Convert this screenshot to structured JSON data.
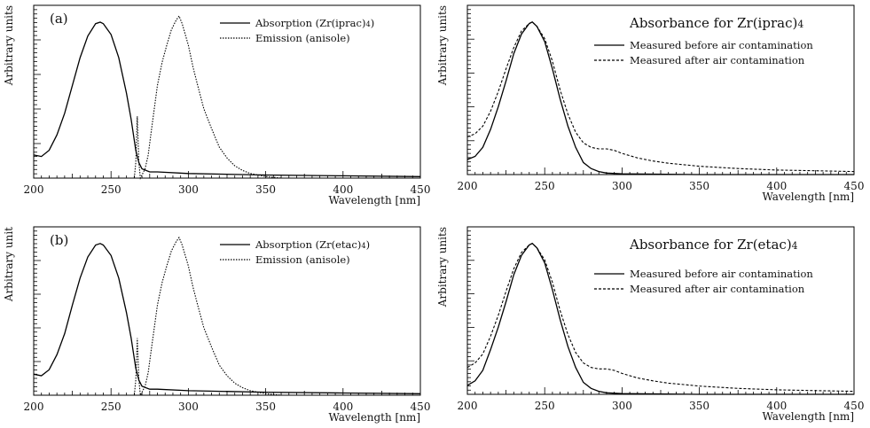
{
  "chart_data": [
    {
      "type": "line",
      "panel_label": "(a)",
      "title": "",
      "xlabel": "Wavelength [nm]",
      "ylabel": "Arbitrary units",
      "xlim": [
        200,
        450
      ],
      "ylim": [
        0,
        1.05
      ],
      "xticks": [
        "200",
        "250",
        "300",
        "350",
        "400",
        "450"
      ],
      "legend_position": "top-right",
      "series": [
        {
          "name": "Absorption  (Zr(iprac)4)",
          "style": "solid",
          "x": [
            200,
            205,
            210,
            215,
            220,
            225,
            230,
            235,
            240,
            243,
            245,
            250,
            255,
            260,
            263,
            266,
            268,
            270,
            275,
            280,
            300,
            350,
            400,
            450
          ],
          "y": [
            0.15,
            0.14,
            0.18,
            0.28,
            0.42,
            0.6,
            0.78,
            0.92,
            1.0,
            1.01,
            1.0,
            0.93,
            0.78,
            0.55,
            0.38,
            0.18,
            0.1,
            0.06,
            0.04,
            0.04,
            0.03,
            0.02,
            0.015,
            0.01
          ]
        },
        {
          "name": "Emission (anisole)",
          "style": "dotted",
          "x": [
            262,
            265,
            266,
            267,
            268,
            269,
            270,
            272,
            274,
            276,
            278,
            280,
            283,
            286,
            289,
            292,
            294,
            296,
            298,
            300,
            303,
            306,
            310,
            315,
            320,
            325,
            330,
            335,
            340,
            345,
            350,
            355,
            360
          ],
          "y": [
            0,
            0,
            0.1,
            0.4,
            0.1,
            0,
            0.02,
            0.06,
            0.15,
            0.3,
            0.45,
            0.6,
            0.75,
            0.86,
            0.96,
            1.02,
            1.05,
            1.0,
            0.93,
            0.86,
            0.72,
            0.6,
            0.45,
            0.32,
            0.2,
            0.13,
            0.08,
            0.05,
            0.03,
            0.02,
            0.01,
            0.005,
            0
          ]
        }
      ]
    },
    {
      "type": "line",
      "title": "Absorbance for Zr(iprac)4",
      "xlabel": "Wavelength [nm]",
      "ylabel": "Arbitrary units",
      "xlim": [
        200,
        450
      ],
      "ylim": [
        0,
        1.05
      ],
      "xticks": [
        "200",
        "250",
        "300",
        "350",
        "400",
        "450"
      ],
      "legend_position": "top-right",
      "series": [
        {
          "name": "Measured before air contamination",
          "style": "solid",
          "x": [
            200,
            205,
            210,
            215,
            220,
            225,
            230,
            235,
            240,
            242,
            245,
            250,
            255,
            260,
            265,
            270,
            275,
            280,
            285,
            290,
            300,
            350,
            400,
            450
          ],
          "y": [
            0.1,
            0.12,
            0.18,
            0.3,
            0.45,
            0.62,
            0.8,
            0.93,
            1.0,
            1.01,
            0.98,
            0.88,
            0.7,
            0.5,
            0.32,
            0.18,
            0.08,
            0.04,
            0.02,
            0.01,
            0.005,
            0.0,
            0.0,
            0.0
          ]
        },
        {
          "name": "Measured after air contamination",
          "style": "dashed",
          "x": [
            200,
            205,
            210,
            215,
            220,
            225,
            230,
            235,
            240,
            242,
            245,
            250,
            255,
            260,
            265,
            270,
            275,
            280,
            285,
            290,
            295,
            300,
            310,
            320,
            330,
            340,
            350,
            375,
            400,
            425,
            450
          ],
          "y": [
            0.25,
            0.27,
            0.32,
            0.42,
            0.55,
            0.7,
            0.84,
            0.95,
            1.0,
            1.01,
            0.98,
            0.9,
            0.75,
            0.56,
            0.4,
            0.28,
            0.21,
            0.18,
            0.17,
            0.17,
            0.16,
            0.14,
            0.11,
            0.09,
            0.075,
            0.065,
            0.055,
            0.04,
            0.03,
            0.025,
            0.02
          ]
        }
      ]
    },
    {
      "type": "line",
      "panel_label": "(b)",
      "title": "",
      "xlabel": "Wavelength [nm]",
      "ylabel": "Arbitrary unit",
      "xlim": [
        200,
        450
      ],
      "ylim": [
        0,
        1.05
      ],
      "xticks": [
        "200",
        "250",
        "300",
        "350",
        "400",
        "450"
      ],
      "legend_position": "top-right",
      "series": [
        {
          "name": "Absorption (Zr(etac)4)",
          "style": "solid",
          "x": [
            200,
            205,
            210,
            215,
            220,
            225,
            230,
            235,
            240,
            243,
            245,
            250,
            255,
            260,
            263,
            266,
            268,
            270,
            275,
            280,
            300,
            350,
            400,
            450
          ],
          "y": [
            0.14,
            0.13,
            0.17,
            0.27,
            0.41,
            0.6,
            0.78,
            0.92,
            1.0,
            1.01,
            1.0,
            0.93,
            0.78,
            0.55,
            0.38,
            0.18,
            0.1,
            0.06,
            0.04,
            0.04,
            0.03,
            0.02,
            0.015,
            0.01
          ]
        },
        {
          "name": "Emission (anisole)",
          "style": "dotted",
          "x": [
            262,
            265,
            266,
            267,
            268,
            269,
            270,
            272,
            274,
            276,
            278,
            280,
            283,
            286,
            289,
            292,
            294,
            296,
            298,
            300,
            303,
            306,
            310,
            315,
            320,
            325,
            330,
            335,
            340,
            345,
            350,
            355,
            360
          ],
          "y": [
            0,
            0,
            0.1,
            0.38,
            0.1,
            0,
            0.02,
            0.06,
            0.15,
            0.3,
            0.45,
            0.6,
            0.75,
            0.86,
            0.96,
            1.02,
            1.05,
            1.0,
            0.93,
            0.86,
            0.72,
            0.6,
            0.45,
            0.32,
            0.2,
            0.13,
            0.08,
            0.05,
            0.03,
            0.02,
            0.01,
            0.005,
            0
          ]
        }
      ]
    },
    {
      "type": "line",
      "title": "Absorbance for Zr(etac)4",
      "xlabel": "Wavelength [nm]",
      "ylabel": "Arbitrary units",
      "xlim": [
        200,
        450
      ],
      "ylim": [
        0,
        1.05
      ],
      "xticks": [
        "200",
        "250",
        "300",
        "350",
        "400",
        "450"
      ],
      "legend_position": "top-right",
      "series": [
        {
          "name": "Measured before air contamination",
          "style": "solid",
          "x": [
            200,
            205,
            210,
            215,
            220,
            225,
            230,
            235,
            240,
            242,
            245,
            250,
            255,
            260,
            265,
            270,
            275,
            280,
            285,
            290,
            300,
            350,
            400,
            450
          ],
          "y": [
            0.06,
            0.09,
            0.16,
            0.3,
            0.45,
            0.62,
            0.8,
            0.93,
            1.0,
            1.01,
            0.98,
            0.88,
            0.7,
            0.5,
            0.32,
            0.18,
            0.08,
            0.04,
            0.02,
            0.01,
            0.005,
            0.0,
            0.0,
            0.0
          ]
        },
        {
          "name": "Measured after air contamination",
          "style": "dashed",
          "x": [
            200,
            205,
            210,
            215,
            220,
            225,
            230,
            235,
            240,
            242,
            245,
            250,
            255,
            260,
            265,
            270,
            275,
            280,
            285,
            290,
            295,
            300,
            310,
            320,
            330,
            340,
            350,
            375,
            400,
            425,
            450
          ],
          "y": [
            0.18,
            0.21,
            0.27,
            0.39,
            0.53,
            0.69,
            0.84,
            0.95,
            1.0,
            1.01,
            0.98,
            0.9,
            0.75,
            0.56,
            0.4,
            0.28,
            0.21,
            0.18,
            0.17,
            0.17,
            0.16,
            0.14,
            0.11,
            0.09,
            0.075,
            0.065,
            0.055,
            0.04,
            0.03,
            0.025,
            0.02
          ]
        }
      ]
    }
  ]
}
